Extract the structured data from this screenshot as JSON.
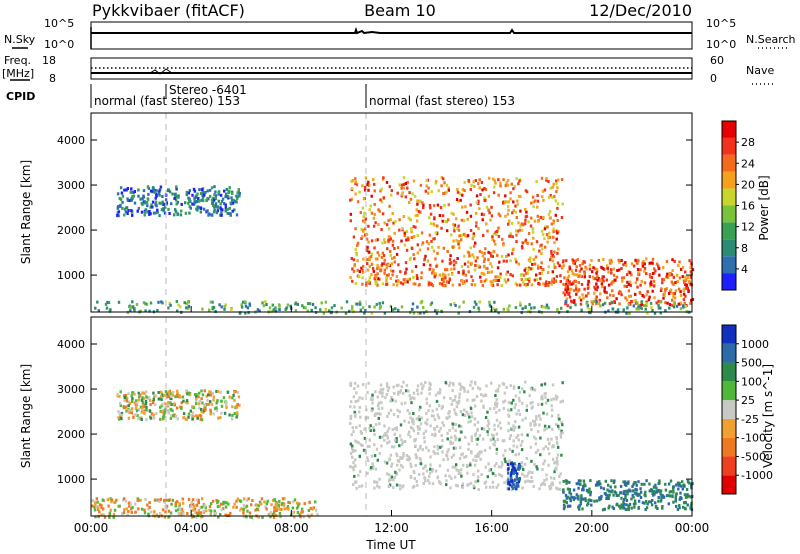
{
  "header": {
    "radar": "Pykkvibaer (fitACF)",
    "beam": "Beam 10",
    "date": "12/Dec/2010"
  },
  "status_panel": {
    "nsky_label": "N.Sky",
    "nsky_ticks": [
      "10^5",
      "10^0"
    ],
    "nsearch_label": "N.Search",
    "nsearch_ticks": [
      "10^5",
      "10^0"
    ],
    "freq_label": "Freq.",
    "freq_unit": "[MHz]",
    "freq_ticks": [
      "18",
      "8"
    ],
    "nave_label": "Nave",
    "nave_ticks": [
      "60",
      "0"
    ],
    "cpid_label": "CPID",
    "cpid_segments": [
      {
        "label": "normal (fast stereo) 153",
        "start_h": 0,
        "end_h": 11.0
      },
      {
        "label": "Stereo -6401",
        "start_h": 2.9,
        "end_h": 3.0
      },
      {
        "label": "normal (fast stereo) 153",
        "start_h": 11.0,
        "end_h": 24
      }
    ]
  },
  "x_axis": {
    "label": "Time UT",
    "ticks": [
      "00:00",
      "04:00",
      "08:00",
      "12:00",
      "16:00",
      "20:00",
      "00:00"
    ],
    "range_h": [
      0,
      24
    ]
  },
  "power_panel": {
    "ylabel": "Slant Range [km]",
    "yticks": [
      "4000",
      "3000",
      "2000",
      "1000"
    ],
    "colorbar_label": "Power [dB]",
    "colorbar_ticks": [
      "28",
      "24",
      "20",
      "16",
      "12",
      "8",
      "4"
    ],
    "colors": [
      "#1f1fff",
      "#2e6fb0",
      "#2a8c73",
      "#3aa054",
      "#79c23c",
      "#c9d52b",
      "#f5a11c",
      "#f56a1c",
      "#f2321a",
      "#e60000"
    ]
  },
  "velocity_panel": {
    "ylabel": "Slant Range [km]",
    "yticks": [
      "4000",
      "3000",
      "2000",
      "1000"
    ],
    "colorbar_label": "Velocity [m s^-1]",
    "colorbar_ticks": [
      "1000",
      "500",
      "100",
      "25",
      "-25",
      "-100",
      "-500",
      "-1000"
    ],
    "colors": [
      "#1030c0",
      "#2d6aa8",
      "#2c8a4a",
      "#4fb83a",
      "#c8c8c4",
      "#f0a030",
      "#f07820",
      "#ee4020",
      "#e00000"
    ]
  },
  "chart_data": [
    {
      "type": "heatmap",
      "title": "Power",
      "ylabel": "Slant Range [km]",
      "xlabel": "Time UT",
      "xlim_hours": [
        0,
        24
      ],
      "ylim_km": [
        180,
        4600
      ],
      "colorbar": {
        "label": "Power [dB]",
        "range": [
          0,
          30
        ]
      },
      "regions": [
        {
          "t_start": 1.0,
          "t_end": 5.9,
          "range_start": 2350,
          "range_end": 3000,
          "power_db": 6
        },
        {
          "t_start": 10.3,
          "t_end": 18.8,
          "range_start": 800,
          "range_end": 3200,
          "power_db": 22
        },
        {
          "t_start": 18.8,
          "t_end": 24.0,
          "range_start": 350,
          "range_end": 1400,
          "power_db": 24
        },
        {
          "t_start": 0.0,
          "t_end": 24.0,
          "range_start": 180,
          "range_end": 450,
          "power_db": 10
        }
      ]
    },
    {
      "type": "heatmap",
      "title": "Velocity",
      "ylabel": "Slant Range [km]",
      "xlabel": "Time UT",
      "xlim_hours": [
        0,
        24
      ],
      "ylim_km": [
        180,
        4600
      ],
      "colorbar": {
        "label": "Velocity [m s^-1]",
        "range": [
          -1000,
          1000
        ]
      },
      "regions": [
        {
          "t_start": 1.0,
          "t_end": 5.9,
          "range_start": 2350,
          "range_end": 3000,
          "velocity": 0
        },
        {
          "t_start": 10.3,
          "t_end": 18.8,
          "range_start": 800,
          "range_end": 3200,
          "velocity": 0
        },
        {
          "t_start": 16.6,
          "t_end": 17.1,
          "range_start": 800,
          "range_end": 1400,
          "velocity": 1000
        },
        {
          "t_start": 18.8,
          "t_end": 24.0,
          "range_start": 350,
          "range_end": 1000,
          "velocity": 500
        },
        {
          "t_start": 0.0,
          "t_end": 9.0,
          "range_start": 180,
          "range_end": 600,
          "velocity": -50
        }
      ]
    }
  ]
}
